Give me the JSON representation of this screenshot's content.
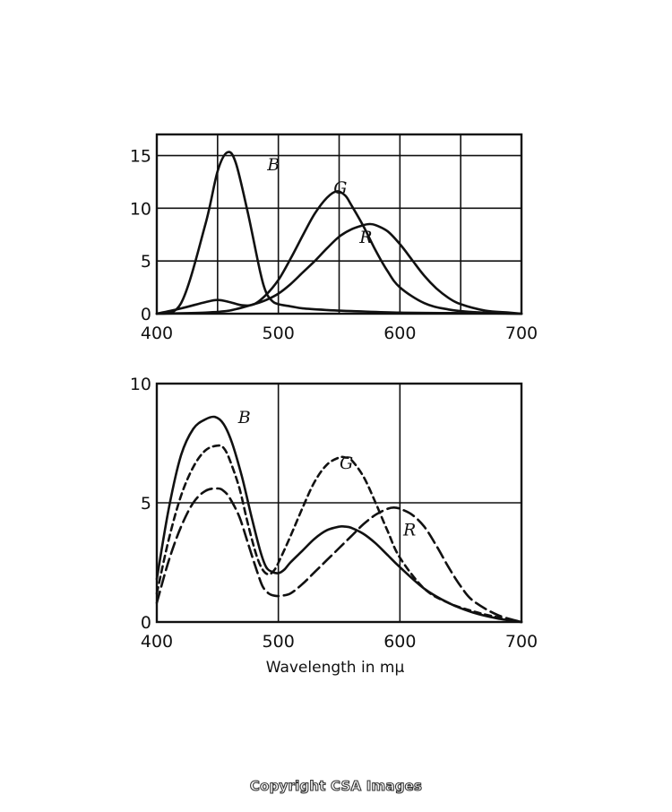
{
  "chart_data": [
    {
      "type": "line",
      "xlim": [
        400,
        700
      ],
      "ylim": [
        0,
        17
      ],
      "x_ticks": [
        "400",
        "500",
        "600",
        "700"
      ],
      "y_ticks": [
        "0",
        "5",
        "10",
        "15"
      ],
      "grid": true,
      "series": [
        {
          "name": "B",
          "style": "solid",
          "x": [
            400,
            420,
            440,
            450,
            458,
            465,
            475,
            485,
            490,
            495,
            500,
            510,
            520,
            540,
            560,
            600,
            650,
            700
          ],
          "values": [
            0,
            1,
            8.5,
            13.5,
            15.3,
            14.3,
            9.5,
            4,
            2,
            1.2,
            0.9,
            0.7,
            0.5,
            0.35,
            0.25,
            0.1,
            0.05,
            0
          ]
        },
        {
          "name": "G",
          "style": "solid",
          "x": [
            400,
            420,
            440,
            450,
            460,
            470,
            480,
            490,
            500,
            510,
            520,
            530,
            540,
            548,
            555,
            560,
            570,
            580,
            590,
            600,
            620,
            640,
            660,
            680,
            700
          ],
          "values": [
            0,
            0.5,
            1.1,
            1.3,
            1.1,
            0.8,
            0.9,
            1.8,
            3.2,
            5.2,
            7.4,
            9.5,
            11,
            11.6,
            11.2,
            10.3,
            8.3,
            6,
            4,
            2.5,
            1,
            0.4,
            0.15,
            0.05,
            0
          ]
        },
        {
          "name": "R",
          "style": "solid",
          "x": [
            400,
            440,
            460,
            480,
            490,
            500,
            510,
            520,
            530,
            540,
            550,
            560,
            570,
            575,
            580,
            590,
            600,
            610,
            620,
            630,
            640,
            650,
            670,
            690,
            700
          ],
          "values": [
            0,
            0.1,
            0.3,
            0.9,
            1.3,
            1.9,
            2.8,
            3.9,
            5,
            6.2,
            7.3,
            8,
            8.4,
            8.5,
            8.4,
            7.8,
            6.6,
            5.1,
            3.6,
            2.4,
            1.5,
            0.9,
            0.3,
            0.1,
            0
          ]
        }
      ],
      "curve_labels": [
        "B",
        "G",
        "R"
      ]
    },
    {
      "type": "line",
      "xlim": [
        400,
        700
      ],
      "ylim": [
        0,
        10
      ],
      "x_ticks": [
        "400",
        "500",
        "600",
        "700"
      ],
      "y_ticks": [
        "0",
        "5",
        "10"
      ],
      "xlabel": "Wavelength in mμ",
      "grid": true,
      "series": [
        {
          "name": "B",
          "style": "solid",
          "x": [
            400,
            410,
            420,
            430,
            440,
            448,
            455,
            462,
            470,
            478,
            485,
            490,
            495,
            500,
            505,
            510,
            520,
            530,
            540,
            550,
            555,
            560,
            570,
            580,
            590,
            600,
            620,
            640,
            660,
            680,
            700
          ],
          "values": [
            1.8,
            4.8,
            7.0,
            8.1,
            8.5,
            8.6,
            8.3,
            7.5,
            6.1,
            4.4,
            3.0,
            2.3,
            2.1,
            2.05,
            2.2,
            2.5,
            3.0,
            3.5,
            3.85,
            4.0,
            4.0,
            3.95,
            3.7,
            3.3,
            2.8,
            2.3,
            1.4,
            0.8,
            0.4,
            0.15,
            0
          ]
        },
        {
          "name": "G",
          "style": "dashed",
          "x": [
            400,
            410,
            420,
            430,
            440,
            450,
            455,
            460,
            468,
            475,
            482,
            487,
            492,
            497,
            502,
            510,
            520,
            530,
            540,
            550,
            555,
            560,
            570,
            580,
            590,
            600,
            620,
            640,
            660,
            680,
            700
          ],
          "values": [
            1.2,
            3.5,
            5.3,
            6.5,
            7.2,
            7.4,
            7.3,
            6.8,
            5.6,
            4.1,
            2.8,
            2.2,
            2.0,
            2.2,
            2.7,
            3.6,
            4.8,
            5.9,
            6.6,
            6.9,
            6.9,
            6.8,
            6.1,
            5.0,
            3.8,
            2.7,
            1.4,
            0.8,
            0.45,
            0.2,
            0
          ]
        },
        {
          "name": "R",
          "style": "dashed",
          "x": [
            400,
            410,
            420,
            430,
            440,
            450,
            455,
            460,
            468,
            475,
            482,
            487,
            492,
            497,
            502,
            510,
            520,
            530,
            540,
            550,
            560,
            570,
            580,
            590,
            595,
            600,
            610,
            620,
            630,
            640,
            650,
            660,
            680,
            700
          ],
          "values": [
            0.8,
            2.6,
            4.0,
            5.0,
            5.5,
            5.6,
            5.5,
            5.2,
            4.4,
            3.3,
            2.2,
            1.5,
            1.2,
            1.1,
            1.1,
            1.2,
            1.6,
            2.1,
            2.6,
            3.1,
            3.6,
            4.1,
            4.5,
            4.75,
            4.8,
            4.75,
            4.5,
            4.0,
            3.2,
            2.3,
            1.5,
            0.9,
            0.3,
            0
          ]
        }
      ],
      "curve_labels": [
        "B",
        "G",
        "R"
      ]
    }
  ],
  "footer": {
    "copyright": "Copyright CSA Images"
  }
}
